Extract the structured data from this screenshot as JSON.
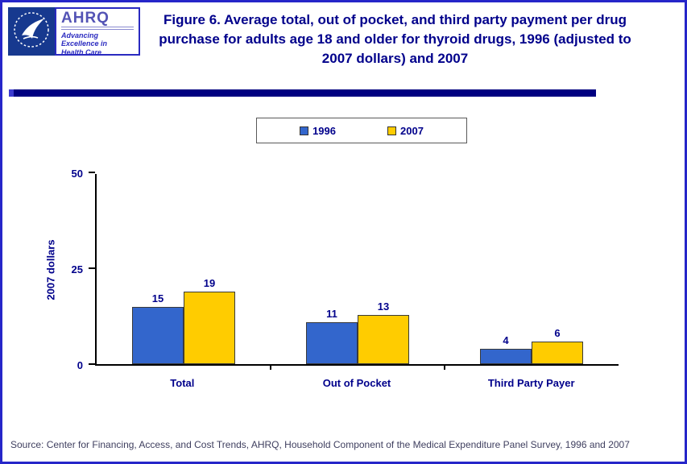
{
  "header": {
    "logo": {
      "ahrq_word": "AHRQ",
      "tagline": "Advancing Excellence in Health Care"
    }
  },
  "chart_data": {
    "type": "bar",
    "title": "Figure 6. Average total, out of pocket, and third party payment per drug purchase for adults age 18 and older for thyroid drugs, 1996 (adjusted to 2007 dollars) and 2007",
    "categories": [
      "Total",
      "Out of Pocket",
      "Third Party Payer"
    ],
    "series": [
      {
        "name": "1996",
        "color": "#3366cc",
        "values": [
          15,
          11,
          4
        ]
      },
      {
        "name": "2007",
        "color": "#ffcc00",
        "values": [
          19,
          13,
          6
        ]
      }
    ],
    "xlabel": "",
    "ylabel": "2007 dollars",
    "yticks": [
      0,
      25,
      50
    ],
    "ylim": [
      0,
      50
    ],
    "grid": false,
    "legend_position": "top-center"
  },
  "colors": {
    "title_text": "#00008b",
    "page_border": "#2626c9",
    "divider": "#000080",
    "bar_1996": "#3366cc",
    "bar_2007": "#ffcc00"
  },
  "footer": {
    "source": "Source: Center for Financing, Access, and Cost Trends, AHRQ, Household Component of the Medical Expenditure Panel Survey, 1996 and 2007"
  }
}
